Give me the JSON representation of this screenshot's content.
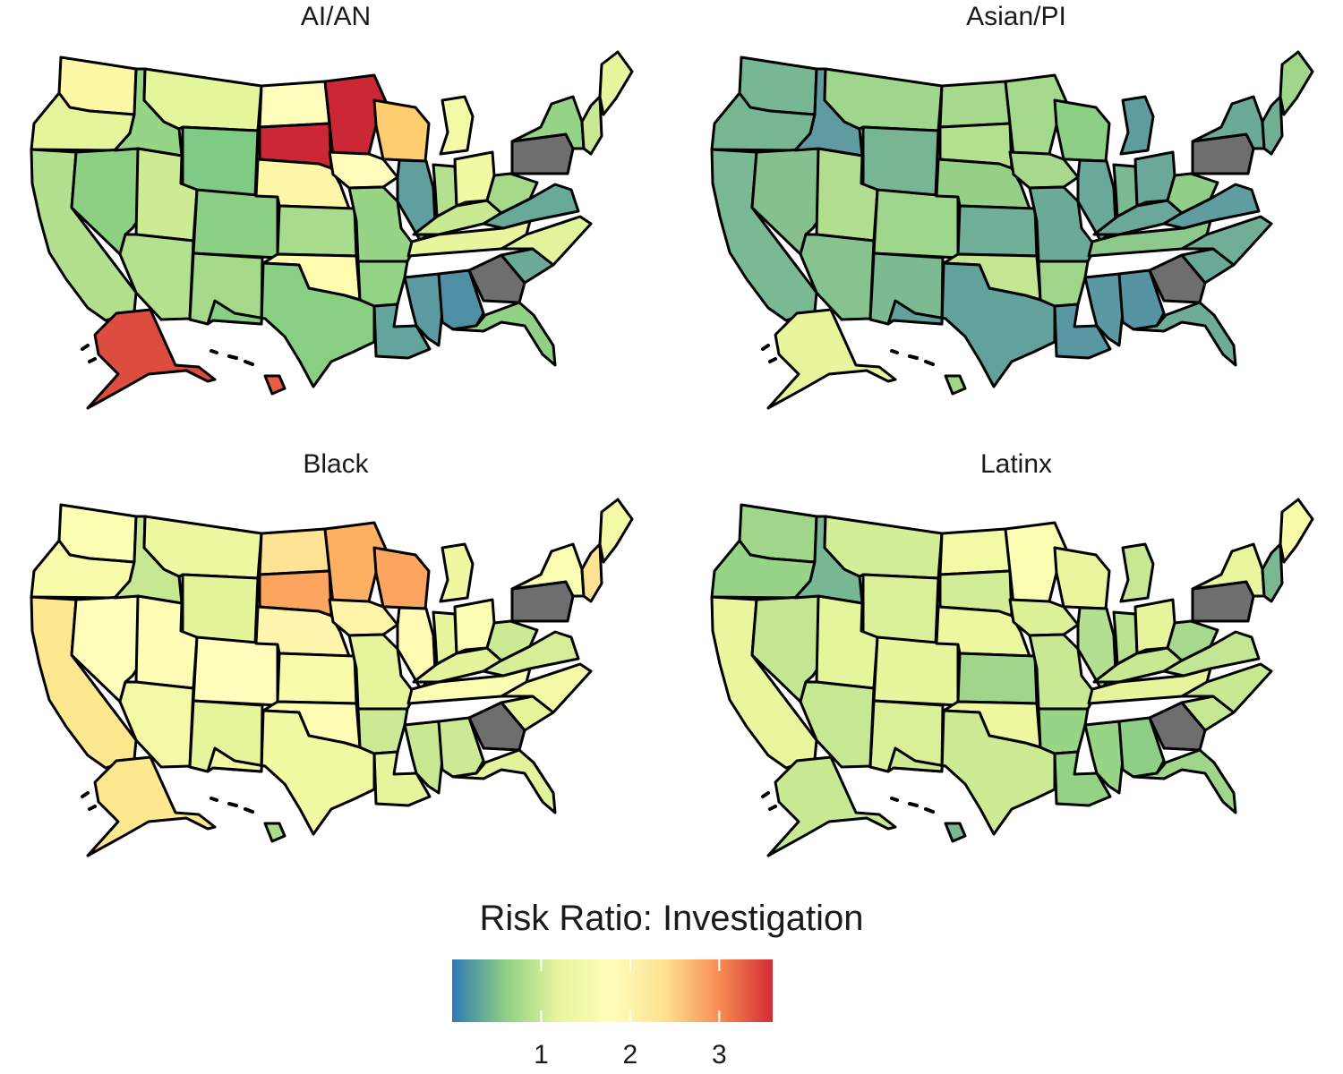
{
  "panels": [
    {
      "title": "AI/AN",
      "states": {
        "WA": "#fcf8a6",
        "OR": "#e6f59c",
        "CA": "#b3e08f",
        "NV": "#8dd084",
        "ID": "#96d486",
        "MT": "#e3f69b",
        "WY": "#7fca85",
        "UT": "#cdeb93",
        "CO": "#8acf84",
        "AZ": "#b5e090",
        "NM": "#a4d98a",
        "ND": "#fffdbb",
        "SD": "#cc2735",
        "NE": "#fff6a8",
        "KS": "#a8db8b",
        "OK": "#fffcb0",
        "TX": "#88cf83",
        "MN": "#cc2735",
        "IA": "#fffdbb",
        "MO": "#97d486",
        "AR": "#93d386",
        "LA": "#63a49c",
        "WI": "#fecd6f",
        "IL": "#609f9e",
        "MI": "#f3f9a4",
        "IN": "#b4e08f",
        "OH": "#f1f9a3",
        "KY": "#c9ea93",
        "TN": "#e8f59d",
        "MS": "#5b9aa0",
        "AL": "#4f8fa5",
        "GA": "#6e6e6e",
        "FL": "#91d186",
        "SC": "#6aaa96",
        "NC": "#e2f49b",
        "VA": "#69a998",
        "WV": "#a7d98b",
        "PA": "#6e6e6e",
        "NY": "#95d386",
        "ME": "#e7f59d",
        "NE_small": "#c8e992",
        "AK": "#dc4d3f",
        "HI": "#e65f43"
      }
    },
    {
      "title": "Asian/PI",
      "states": {
        "WA": "#78b795",
        "OR": "#77b693",
        "CA": "#79b993",
        "NV": "#86c08f",
        "ID": "#5f9ba0",
        "MT": "#9fd58c",
        "WY": "#77b594",
        "UT": "#b3de8f",
        "CO": "#9ed78b",
        "AZ": "#87c38f",
        "NM": "#7cba92",
        "ND": "#a6d98b",
        "SD": "#b4e08f",
        "NE": "#96d086",
        "KS": "#6fae97",
        "OK": "#c4e692",
        "TX": "#63a29c",
        "MN": "#a4d98b",
        "IA": "#a6d98b",
        "MO": "#6aaa96",
        "AR": "#9fd68a",
        "LA": "#5997a2",
        "WI": "#8ccf85",
        "IL": "#6aa899",
        "MI": "#5f9c9f",
        "IN": "#7cb992",
        "OH": "#6aa899",
        "KY": "#6aa899",
        "TN": "#8dc98d",
        "MS": "#5a99a1",
        "AL": "#5794a3",
        "GA": "#6e6e6e",
        "FL": "#6fac97",
        "SC": "#6aa899",
        "NC": "#70ae96",
        "VA": "#5f9da0",
        "WV": "#8fd086",
        "PA": "#6e6e6e",
        "NY": "#6aaa96",
        "ME": "#9fd68a",
        "NE_small": "#70ae96",
        "AK": "#e8f59d",
        "HI": "#9fd68a"
      }
    },
    {
      "title": "Black",
      "states": {
        "WA": "#fbfdb3",
        "OR": "#f7fbaa",
        "CA": "#fde88f",
        "NV": "#fffdbb",
        "ID": "#c6e893",
        "MT": "#eef8a0",
        "WY": "#e3f49b",
        "UT": "#fdfdb6",
        "CO": "#fffdbb",
        "AZ": "#f3f9a4",
        "NM": "#e6f59c",
        "ND": "#fee394",
        "SD": "#fca55f",
        "NE": "#fff5ad",
        "KS": "#f7fbaa",
        "OK": "#fdfdb6",
        "TX": "#f1f9a3",
        "MN": "#fdaf62",
        "IA": "#fff4a8",
        "MO": "#e6f59c",
        "AR": "#cbea93",
        "LA": "#e6f59c",
        "WI": "#fca55f",
        "IL": "#fffbb4",
        "MI": "#eff8a1",
        "IN": "#e6f59c",
        "OH": "#fbfdb3",
        "KY": "#e3f49b",
        "TN": "#fbfdb3",
        "MS": "#c8e992",
        "AL": "#cbea93",
        "GA": "#6e6e6e",
        "FL": "#e2f49b",
        "SC": "#e6f59c",
        "NC": "#f3f9a4",
        "VA": "#d6ee97",
        "WV": "#cbea93",
        "PA": "#6e6e6e",
        "NY": "#fbfdb3",
        "ME": "#f3f9a4",
        "NE_small": "#fee394",
        "AK": "#fde88f",
        "HI": "#a9db8b"
      }
    },
    {
      "title": "Latinx",
      "states": {
        "WA": "#a0d68a",
        "OR": "#98d487",
        "CA": "#eaf69d",
        "NV": "#c3e692",
        "ID": "#78b794",
        "MT": "#d4ee97",
        "WY": "#d9f098",
        "UT": "#e5f59c",
        "CO": "#e7f59d",
        "AZ": "#c6e892",
        "NM": "#d9f098",
        "ND": "#f3f9a4",
        "SD": "#d3ed96",
        "NE": "#ecf7a0",
        "KS": "#a0d68a",
        "OK": "#edf8a0",
        "TX": "#cdeb93",
        "MN": "#fafdb2",
        "IA": "#dcf299",
        "MO": "#c8e992",
        "AR": "#97d486",
        "LA": "#94d386",
        "WI": "#e9f69e",
        "IL": "#b4df90",
        "MI": "#c6e892",
        "IN": "#b8e190",
        "OH": "#e6f59c",
        "KY": "#c8e992",
        "TN": "#e6f59c",
        "MS": "#97d486",
        "AL": "#8ccf85",
        "GA": "#6e6e6e",
        "FL": "#a0d68a",
        "SC": "#c6e892",
        "NC": "#c8e992",
        "VA": "#c3e692",
        "WV": "#a6d98b",
        "PA": "#6e6e6e",
        "NY": "#eaf69d",
        "ME": "#f8fca8",
        "NE_small": "#7ab892",
        "AK": "#c8e992",
        "HI": "#78b794"
      }
    }
  ],
  "legend": {
    "title": "Risk Ratio: Investigation",
    "ticks": [
      {
        "label": "1",
        "value": 1
      },
      {
        "label": "2",
        "value": 2
      },
      {
        "label": "3",
        "value": 3
      }
    ],
    "range": [
      0,
      3.6
    ],
    "stops": [
      "#2f79b5",
      "#8dd084",
      "#e8f59d",
      "#fffdbb",
      "#fee090",
      "#f88d52",
      "#d22b36"
    ]
  },
  "missing_color": "#6e6e6e"
}
